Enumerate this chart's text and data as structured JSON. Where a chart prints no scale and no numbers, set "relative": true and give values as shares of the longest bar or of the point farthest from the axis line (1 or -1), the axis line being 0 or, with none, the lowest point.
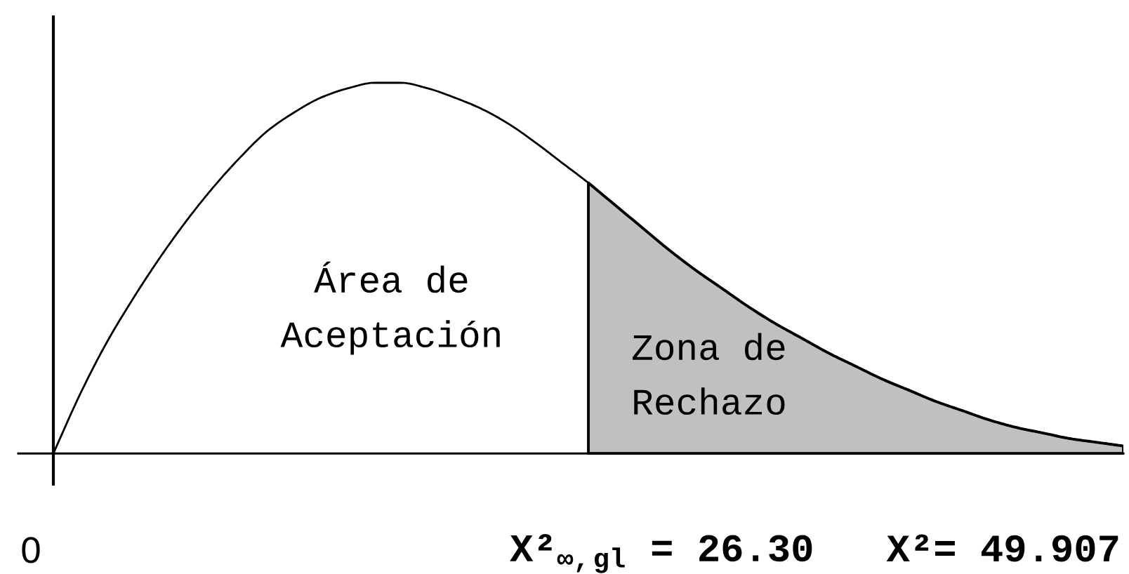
{
  "chart_data": {
    "type": "line",
    "relative": true,
    "categories": [
      null,
      null,
      null,
      null,
      null,
      null,
      null,
      null,
      null,
      null,
      null,
      null,
      null,
      null,
      null,
      null,
      null,
      null,
      null,
      null,
      null,
      null,
      null,
      null,
      null,
      null,
      null,
      null,
      null,
      null,
      null,
      null,
      null,
      null,
      null,
      null,
      null,
      null,
      null,
      null,
      null
    ],
    "series": [
      {
        "color": "#000000",
        "values": [
          0,
          0.16,
          0.3,
          0.42,
          0.53,
          0.63,
          0.72,
          0.8,
          0.87,
          0.92,
          0.96,
          0.985,
          1,
          1,
          0.985,
          0.96,
          0.93,
          0.89,
          0.84,
          0.785,
          0.73,
          0.67,
          0.61,
          0.55,
          0.495,
          0.445,
          0.395,
          0.35,
          0.31,
          0.27,
          0.235,
          0.2,
          0.17,
          0.14,
          0.115,
          0.09,
          0.07,
          0.055,
          0.04,
          0.03,
          0.02
        ]
      },
      {
        "type": "area",
        "color": "#c0c0c0",
        "values": [
          null,
          null,
          null,
          null,
          null,
          null,
          null,
          null,
          null,
          null,
          null,
          null,
          null,
          null,
          null,
          null,
          null,
          null,
          null,
          null,
          0.73,
          0.67,
          0.61,
          0.55,
          0.495,
          0.445,
          0.395,
          0.35,
          0.31,
          0.27,
          0.235,
          0.2,
          0.17,
          0.14,
          0.115,
          0.09,
          0.07,
          0.055,
          0.04,
          0.03,
          0.02
        ]
      }
    ],
    "annotations": [
      "Área de\nAceptación",
      "Zona de\nRechazo",
      "0",
      "X²$_{∞,gl}$ = 26.30",
      "X²= 49.907"
    ]
  }
}
